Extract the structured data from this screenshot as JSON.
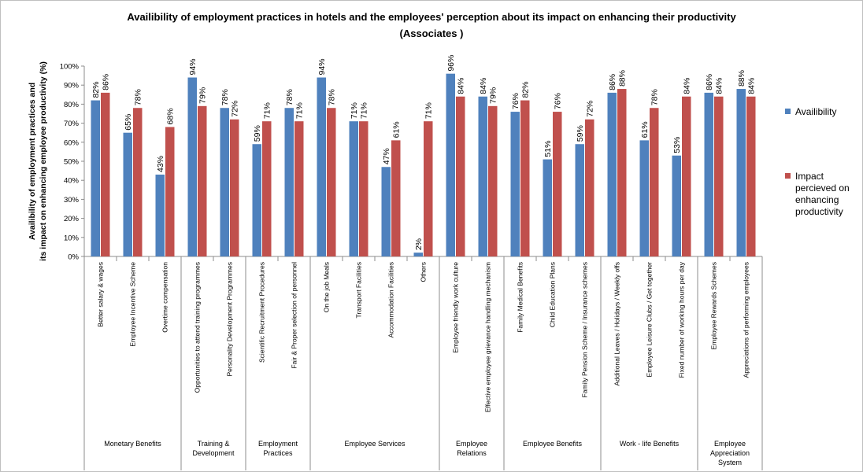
{
  "chart_data": {
    "type": "bar",
    "title": "Availibility of employment practices in hotels and the employees' perception about its impact on enhancing their productivity",
    "subtitle": "(Associates )",
    "ylabel_lines": [
      "Availibility of employment practices and",
      "its impact on enhancing  employee productivity (%)"
    ],
    "ylim": [
      0,
      100
    ],
    "yticks": [
      "0%",
      "10%",
      "20%",
      "30%",
      "40%",
      "50%",
      "60%",
      "70%",
      "80%",
      "90%",
      "100%"
    ],
    "grid": false,
    "legend_position": "right",
    "categories": [
      "Better salary & wages",
      "Employee Incentive Scheme",
      "Overtime compensation",
      "Opportunities to attend  training programmes",
      "Personality Development Programmes",
      "Scientific Recruitment  Procedures",
      "Fair & Proper selection of personnel",
      "On the job Meals",
      "Transport Facilities",
      "Accommodation Facilities",
      "Others",
      "Employee friendly work culture",
      "Effective employee grievance handling mechanism",
      "Family Medical Benefits",
      "Child Education Plans",
      "Family Pension Scheme / Insurance schemes",
      "Additional Leaves / Holidays / Weekly offs",
      "Employee Leisure Clubs / Get together",
      "Fixed number of working hours per day",
      "Employee Rewards Schemes",
      "Appreciations of performing employees"
    ],
    "groups": [
      {
        "name": "Monetary Benefits",
        "lines": [
          "Monetary Benefits"
        ],
        "count": 3
      },
      {
        "name": "Training & Development",
        "lines": [
          "Training &",
          "Development"
        ],
        "count": 2
      },
      {
        "name": "Employment Practices",
        "lines": [
          "Employment",
          "Practices"
        ],
        "count": 2
      },
      {
        "name": "Employee Services",
        "lines": [
          "Employee Services"
        ],
        "count": 4
      },
      {
        "name": "Employee Relations",
        "lines": [
          "Employee",
          "Relations"
        ],
        "count": 2
      },
      {
        "name": "Employee Benefits",
        "lines": [
          "Employee Benefits"
        ],
        "count": 3
      },
      {
        "name": "Work - life Benefits",
        "lines": [
          "Work - life Benefits"
        ],
        "count": 3
      },
      {
        "name": "Employee Appreciation System",
        "lines": [
          "Employee",
          "Appreciation",
          "System"
        ],
        "count": 2
      }
    ],
    "series": [
      {
        "name": "Availibility",
        "legend_lines": [
          "Availibility"
        ],
        "color": "#4f81bd",
        "values": [
          82,
          65,
          43,
          94,
          78,
          59,
          78,
          94,
          71,
          47,
          2,
          96,
          84,
          76,
          51,
          59,
          86,
          61,
          53,
          86,
          88
        ]
      },
      {
        "name": "Impact percieved on enhancing productivity",
        "legend_lines": [
          "Impact",
          "percieved on",
          "enhancing",
          "productivity"
        ],
        "color": "#c0504d",
        "values": [
          86,
          78,
          68,
          79,
          72,
          71,
          71,
          78,
          71,
          61,
          71,
          84,
          79,
          82,
          76,
          72,
          88,
          78,
          84,
          84,
          84
        ]
      }
    ]
  }
}
